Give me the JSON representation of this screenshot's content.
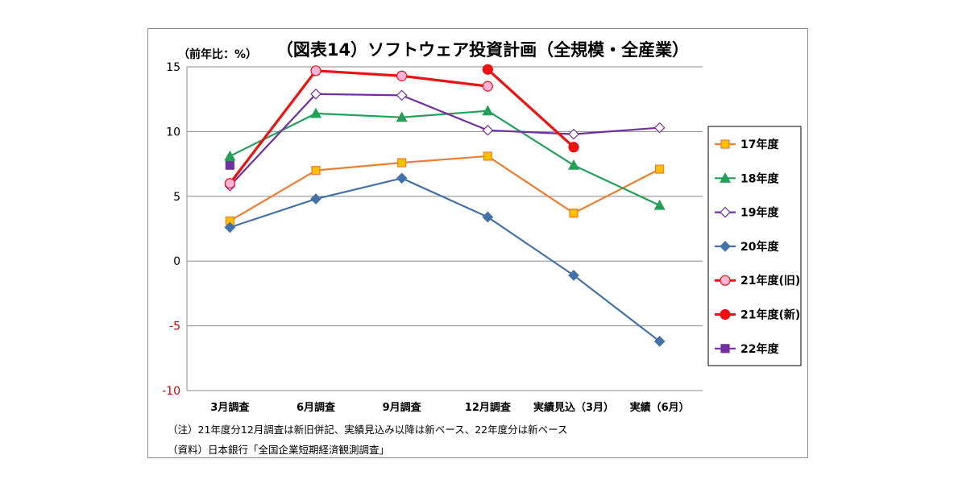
{
  "chart_data": {
    "type": "line",
    "title": "（図表14）ソフトウェア投資計画（全規模・全産業）",
    "ylabel": "（前年比：%）",
    "ylim": [
      -10,
      15
    ],
    "yticks": [
      15,
      10,
      5,
      0,
      -5,
      -10
    ],
    "grid": true,
    "legend_position": "right",
    "categories": [
      "3月調査",
      "6月調査",
      "9月調査",
      "12月調査",
      "実績見込（3月）",
      "実績（6月）"
    ],
    "series": [
      {
        "name": "17年度",
        "color": "#ed7d31",
        "marker": "square",
        "marker_fill": "#ffc000",
        "values": [
          3.1,
          7.0,
          7.6,
          8.1,
          3.7,
          7.1
        ]
      },
      {
        "name": "18年度",
        "color": "#22a05a",
        "marker": "triangle",
        "marker_fill": "#22a05a",
        "values": [
          8.1,
          11.4,
          11.1,
          11.6,
          7.4,
          4.3
        ]
      },
      {
        "name": "19年度",
        "color": "#7030a0",
        "marker": "diamond-open",
        "marker_fill": "#ffffff",
        "values": [
          5.8,
          12.9,
          12.8,
          10.1,
          9.8,
          10.3
        ]
      },
      {
        "name": "20年度",
        "color": "#4472a8",
        "marker": "diamond",
        "marker_fill": "#4472a8",
        "values": [
          2.6,
          4.8,
          6.4,
          3.4,
          -1.1,
          -6.2
        ]
      },
      {
        "name": "21年度(旧)",
        "color": "#ee1111",
        "marker": "circle-pink",
        "marker_fill": "#ffb3d9",
        "values": [
          6.0,
          14.7,
          14.3,
          13.5,
          null,
          null
        ]
      },
      {
        "name": "21年度(新)",
        "color": "#ee1111",
        "marker": "circle",
        "marker_fill": "#ee1111",
        "values": [
          null,
          null,
          null,
          14.8,
          8.8,
          null
        ]
      },
      {
        "name": "22年度",
        "color": "#7030a0",
        "marker": "square",
        "marker_fill": "#7030a0",
        "values": [
          7.4,
          null,
          null,
          null,
          null,
          null
        ]
      }
    ],
    "connect": [
      {
        "from": "21年度(旧)",
        "to_index_gap": true
      }
    ],
    "notes": [
      "（注）21年度分12月調査は新旧併記、実績見込み以降は新ベース、22年度分は新ベース",
      "（資料）日本銀行「全国企業短期経済観測調査」"
    ]
  }
}
